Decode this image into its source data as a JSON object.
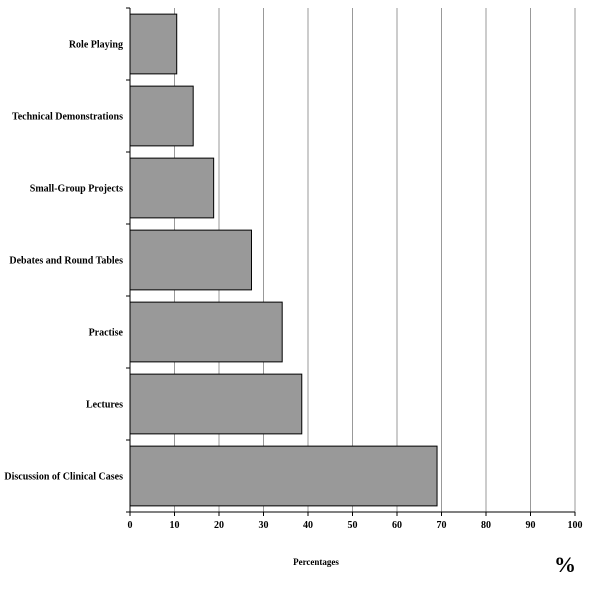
{
  "chart_data": {
    "type": "bar",
    "orientation": "horizontal",
    "categories": [
      "Role Playing",
      "Technical Demonstrations",
      "Small-Group Projects",
      "Debates and Round Tables",
      "Practise",
      "Lectures",
      "Discussion of Clinical Cases"
    ],
    "values": [
      10.5,
      14.2,
      18.8,
      27.3,
      34.2,
      38.6,
      69.0
    ],
    "x_ticks": [
      "0",
      "10",
      "20",
      "30",
      "40",
      "50",
      "60",
      "70",
      "80",
      "90",
      "100"
    ],
    "xlim": [
      0,
      100
    ],
    "xlabel": "Percentages",
    "unit_symbol": "%",
    "grid": "vertical",
    "bar_color": "#999999",
    "bar_edge_color": "#000000",
    "grid_color": "#999999"
  }
}
